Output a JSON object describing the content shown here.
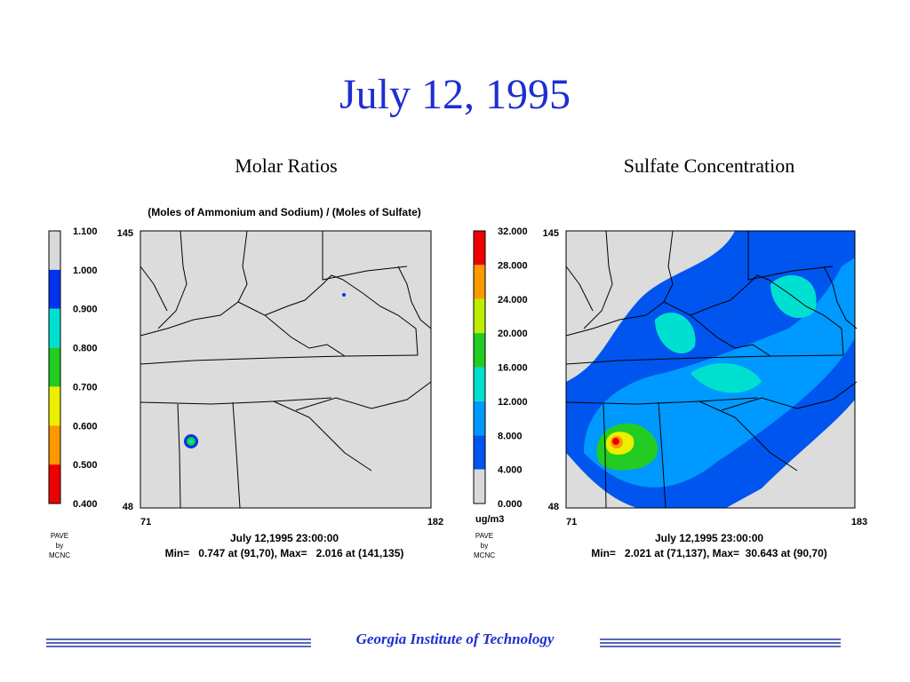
{
  "title": "July 12, 1995",
  "panels": [
    {
      "heading": "Molar Ratios",
      "subtitle": "(Moles of Ammonium and Sodium) / (Moles of Sulfate)",
      "colorbar": {
        "labels": [
          "1.100",
          "1.000",
          "0.900",
          "0.800",
          "0.700",
          "0.600",
          "0.500",
          "0.400"
        ],
        "colors": [
          "#d9d9d9",
          "#0033ee",
          "#00e0d0",
          "#22cc22",
          "#eeee00",
          "#ff9900",
          "#ee0000"
        ]
      },
      "y_top": "145",
      "y_bottom": "48",
      "x_left": "71",
      "x_right": "182",
      "credit": [
        "PAVE",
        "by",
        "MCNC"
      ],
      "timestamp": "July 12,1995 23:00:00",
      "stats": "Min=   0.747 at (91,70), Max=   2.016 at (141,135)"
    },
    {
      "heading": "Sulfate Concentration",
      "colorbar": {
        "labels": [
          "32.000",
          "28.000",
          "24.000",
          "20.000",
          "16.000",
          "12.000",
          "8.000",
          "4.000",
          "0.000"
        ],
        "colors": [
          "#ee0000",
          "#ff9900",
          "#bbee00",
          "#22cc22",
          "#00e0d0",
          "#0099ff",
          "#0055ee",
          "#d9d9d9"
        ],
        "unit": "ug/m3"
      },
      "y_top": "145",
      "y_bottom": "48",
      "x_left": "71",
      "x_right": "183",
      "credit": [
        "PAVE",
        "by",
        "MCNC"
      ],
      "timestamp": "July 12,1995 23:00:00",
      "stats": "Min=   2.021 at (71,137), Max=  30.643 at (90,70)"
    }
  ],
  "footer": "Georgia Institute of Technology"
}
